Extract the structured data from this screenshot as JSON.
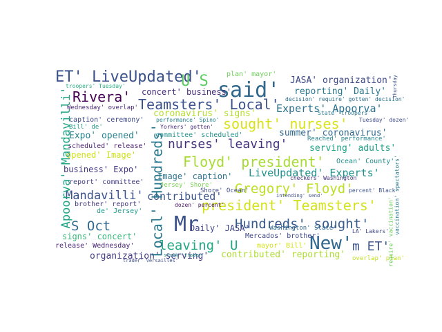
{
  "words": [
    "ET' LiveUpdated'",
    "U S",
    "said'",
    "plan' mayor'",
    "JASA' organization'",
    "troopers' Tuesday'",
    "Rivera'",
    "concert' business'",
    "reporting' Daily'",
    "Teamsters' Local'",
    "Experts' Apoorva'",
    "Wednesday' overlap'",
    "coronavirus' signs'",
    "sought' nurses'",
    "caption' ceremony'",
    "Bill' de'",
    "summer' coronavirus'",
    "Expo' opened'",
    "nurses' leaving'",
    "committee' scheduled'",
    "scheduled' release'",
    "serving' adults'",
    "opened' Image'",
    "Floyd' president'",
    "LiveUpdated' Experts'",
    "business' Expo'",
    "Image' caption'",
    "Gregory' Floyd'",
    "Mandavilli'",
    "contributed'",
    "report' committee'",
    "president' Teamsters'",
    "Hundreds' sought'",
    "S Oct",
    "Mr",
    "brother' report'",
    "de' Jersey'",
    "New'",
    "m ET'",
    "Daily' JASA'",
    "signs' concert'",
    "leaving' U",
    "release' Wednesday'",
    "organization' serving'",
    "contributed' reporting'",
    "Mercados' brother'",
    "Washington' State'",
    "mayor' Bill'",
    "overlap' plan'",
    "Shore' Ocean'",
    "Jersey' Shore'",
    "Ocean' County'",
    "Reached' performance'",
    "checkers' Washington",
    "percent' Black'",
    "Tuesday' dozen'",
    "decision' require' gotten' decision'",
    "State' troopers'",
    "performance' Spino'",
    "Yorkers' gotten'",
    "dozen' percent'",
    "LA' Lakers'",
    "intending' send'",
    "stock' trader'",
    "trader' Versailles'",
    "Apoorva' Mandavilli'",
    "Local' Hundreds'",
    "vaccination' spectators'",
    "require' vaccination'",
    "Thursday"
  ]
}
